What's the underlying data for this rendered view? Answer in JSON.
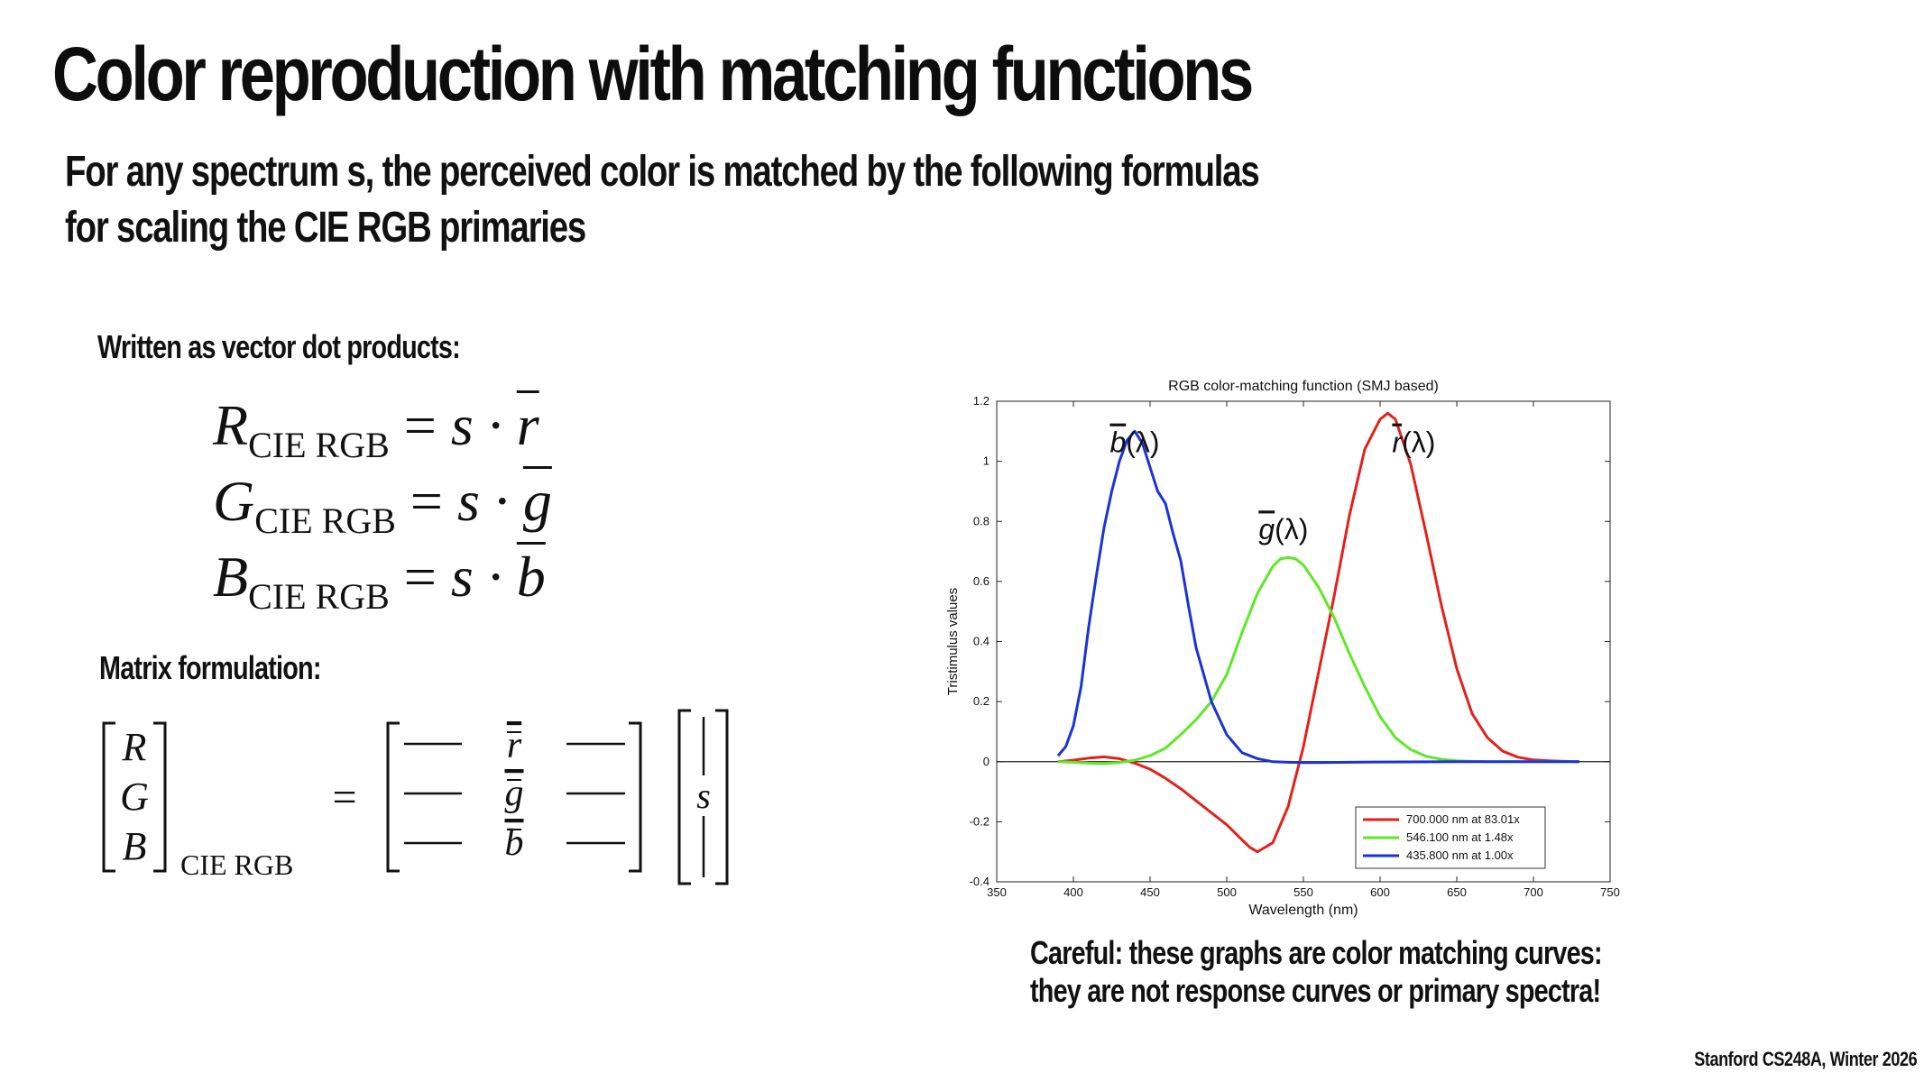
{
  "slide": {
    "title": "Color reproduction with matching functions",
    "subtitle_line1": "For any spectrum s, the perceived color is matched by the following formulas",
    "subtitle_line2": "for scaling the CIE RGB primaries",
    "dot_products_label": "Written as vector dot products:",
    "matrix_label": "Matrix formulation:",
    "equations": [
      {
        "lhs": "R",
        "sub": "CIE RGB",
        "rhs": "s · ",
        "vec": "r"
      },
      {
        "lhs": "G",
        "sub": "CIE RGB",
        "rhs": "s · ",
        "vec": "g"
      },
      {
        "lhs": "B",
        "sub": "CIE RGB",
        "rhs": "s · ",
        "vec": "b"
      }
    ],
    "matrix": {
      "left_vector": [
        "R",
        "G",
        "B"
      ],
      "left_subscript": "CIE RGB",
      "equals": "=",
      "rows": [
        "r",
        "g",
        "b"
      ],
      "right_vector": "s"
    },
    "careful_line1": "Careful: these graphs are color matching curves:",
    "careful_line2": "they are not response curves or primary spectra!",
    "footer": "Stanford CS248A, Winter 2026"
  },
  "chart_data": {
    "type": "line",
    "title": "RGB color-matching function (SMJ based)",
    "xlabel": "Wavelength (nm)",
    "ylabel": "Tristimulus values",
    "xlim": [
      350,
      750
    ],
    "ylim": [
      -0.4,
      1.2
    ],
    "xticks": [
      350,
      400,
      450,
      500,
      550,
      600,
      650,
      700,
      750
    ],
    "yticks": [
      -0.4,
      -0.2,
      0,
      0.2,
      0.4,
      0.6,
      0.8,
      1,
      1.2
    ],
    "legend_position": "bottom-right",
    "curve_labels": [
      {
        "symbol": "b",
        "arg": "(λ)",
        "series": 2
      },
      {
        "symbol": "g",
        "arg": "(λ)",
        "series": 1
      },
      {
        "symbol": "r",
        "arg": "(λ)",
        "series": 0
      }
    ],
    "series": [
      {
        "name": "700.000 nm at 83.01x",
        "color": "#e3211c",
        "x": [
          390,
          400,
          410,
          420,
          430,
          440,
          450,
          460,
          470,
          480,
          490,
          500,
          510,
          515,
          520,
          530,
          540,
          550,
          560,
          570,
          580,
          590,
          600,
          605,
          610,
          620,
          630,
          640,
          650,
          660,
          670,
          680,
          690,
          700,
          710,
          720,
          730
        ],
        "y": [
          0,
          0.005,
          0.012,
          0.016,
          0.01,
          -0.005,
          -0.025,
          -0.055,
          -0.09,
          -0.13,
          -0.17,
          -0.21,
          -0.26,
          -0.285,
          -0.3,
          -0.27,
          -0.15,
          0.05,
          0.3,
          0.55,
          0.82,
          1.04,
          1.14,
          1.16,
          1.14,
          0.99,
          0.76,
          0.52,
          0.31,
          0.16,
          0.08,
          0.035,
          0.015,
          0.006,
          0.003,
          0.001,
          0
        ]
      },
      {
        "name": "546.100 nm at  1.48x",
        "color": "#5ee826",
        "x": [
          390,
          400,
          410,
          420,
          430,
          440,
          450,
          460,
          470,
          480,
          490,
          500,
          510,
          520,
          530,
          535,
          540,
          545,
          550,
          560,
          570,
          580,
          590,
          600,
          610,
          620,
          630,
          640,
          650,
          660,
          670,
          680,
          690,
          700,
          710,
          720,
          730
        ],
        "y": [
          0,
          -0.002,
          -0.005,
          -0.006,
          -0.003,
          0.005,
          0.02,
          0.045,
          0.09,
          0.14,
          0.2,
          0.29,
          0.43,
          0.56,
          0.65,
          0.675,
          0.68,
          0.675,
          0.655,
          0.58,
          0.48,
          0.36,
          0.25,
          0.15,
          0.08,
          0.04,
          0.018,
          0.008,
          0.003,
          0.001,
          0,
          0,
          0,
          0,
          0,
          0,
          0
        ]
      },
      {
        "name": "435.800 nm at  1.00x",
        "color": "#1b33d6",
        "x": [
          390,
          395,
          400,
          405,
          410,
          415,
          420,
          425,
          430,
          435,
          440,
          445,
          450,
          455,
          460,
          465,
          470,
          475,
          480,
          490,
          500,
          510,
          520,
          530,
          540,
          550,
          560,
          580,
          600,
          650,
          700,
          730
        ],
        "y": [
          0.02,
          0.05,
          0.12,
          0.25,
          0.45,
          0.62,
          0.78,
          0.9,
          1.0,
          1.07,
          1.1,
          1.06,
          0.98,
          0.9,
          0.86,
          0.76,
          0.67,
          0.52,
          0.38,
          0.2,
          0.09,
          0.03,
          0.01,
          0,
          -0.002,
          -0.003,
          -0.003,
          -0.002,
          -0.001,
          0,
          0,
          0
        ]
      }
    ]
  }
}
